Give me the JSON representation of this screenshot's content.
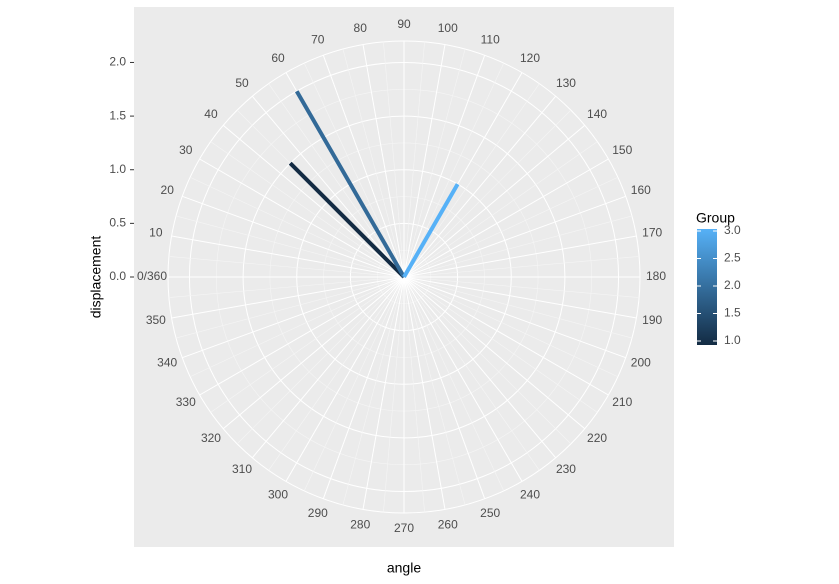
{
  "chart_data": {
    "type": "polar-line",
    "x_label": "angle",
    "y_label": "displacement",
    "x": [
      45,
      60,
      120
    ],
    "values": [
      1.5,
      2,
      1
    ],
    "group": [
      1,
      2,
      3
    ],
    "colors": [
      "#132B43",
      "#336A98",
      "#56B1F7"
    ],
    "xlim": [
      0,
      360
    ],
    "xticks": [
      {
        "value": 0,
        "label": "0/360"
      },
      10,
      20,
      30,
      40,
      50,
      60,
      70,
      80,
      90,
      100,
      110,
      120,
      130,
      140,
      150,
      160,
      170,
      180,
      190,
      200,
      210,
      220,
      230,
      240,
      250,
      260,
      270,
      280,
      290,
      300,
      310,
      320,
      330,
      340,
      350
    ],
    "ylim": [
      0,
      2.2
    ],
    "yticks": [
      {
        "value": 0,
        "label": "0.0"
      },
      0.5,
      {
        "value": 1,
        "label": "1.0"
      },
      1.5,
      {
        "value": 2,
        "label": "2.0"
      }
    ],
    "grid": true,
    "colorbar": {
      "title": "Group",
      "lim": [
        1,
        3
      ],
      "low": "#132B43",
      "high": "#56B1F7",
      "ticks": [
        {
          "value": 1,
          "label": "1.0"
        },
        1.5,
        {
          "value": 2,
          "label": "2.0"
        },
        2.5,
        {
          "value": 3,
          "label": "3.0"
        }
      ]
    }
  }
}
